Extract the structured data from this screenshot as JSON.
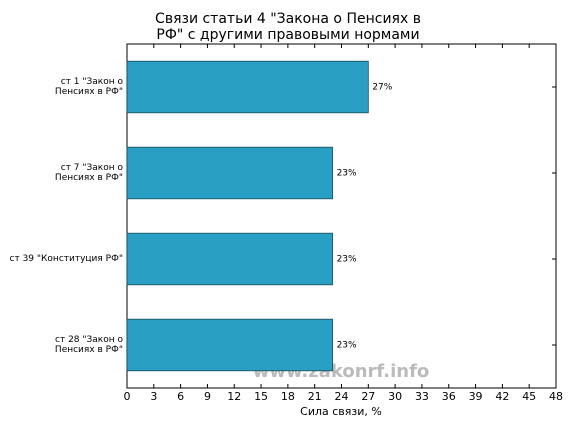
{
  "chart_data": {
    "type": "barh",
    "title": "Связи статьи 4 \"Закона о Пенсиях в\nРФ\" с другими правовыми нормами",
    "categories": [
      "ст 1 \"Закон о\nПенсиях в РФ\"",
      "ст 7 \"Закон о\nПенсиях в РФ\"",
      "ст 39 \"Конституция РФ\"",
      "ст 28 \"Закон о\nПенсиях в РФ\""
    ],
    "values": [
      27,
      23,
      23,
      23
    ],
    "value_labels": [
      "27%",
      "23%",
      "23%",
      "23%"
    ],
    "color": "#2a9fc4",
    "xlabel": "Сила связи, %",
    "xlim": [
      0,
      48
    ],
    "xticks": [
      0,
      3,
      6,
      9,
      12,
      15,
      18,
      21,
      24,
      27,
      30,
      33,
      36,
      39,
      42,
      45,
      48
    ],
    "watermark": "www.zakonrf.info"
  }
}
